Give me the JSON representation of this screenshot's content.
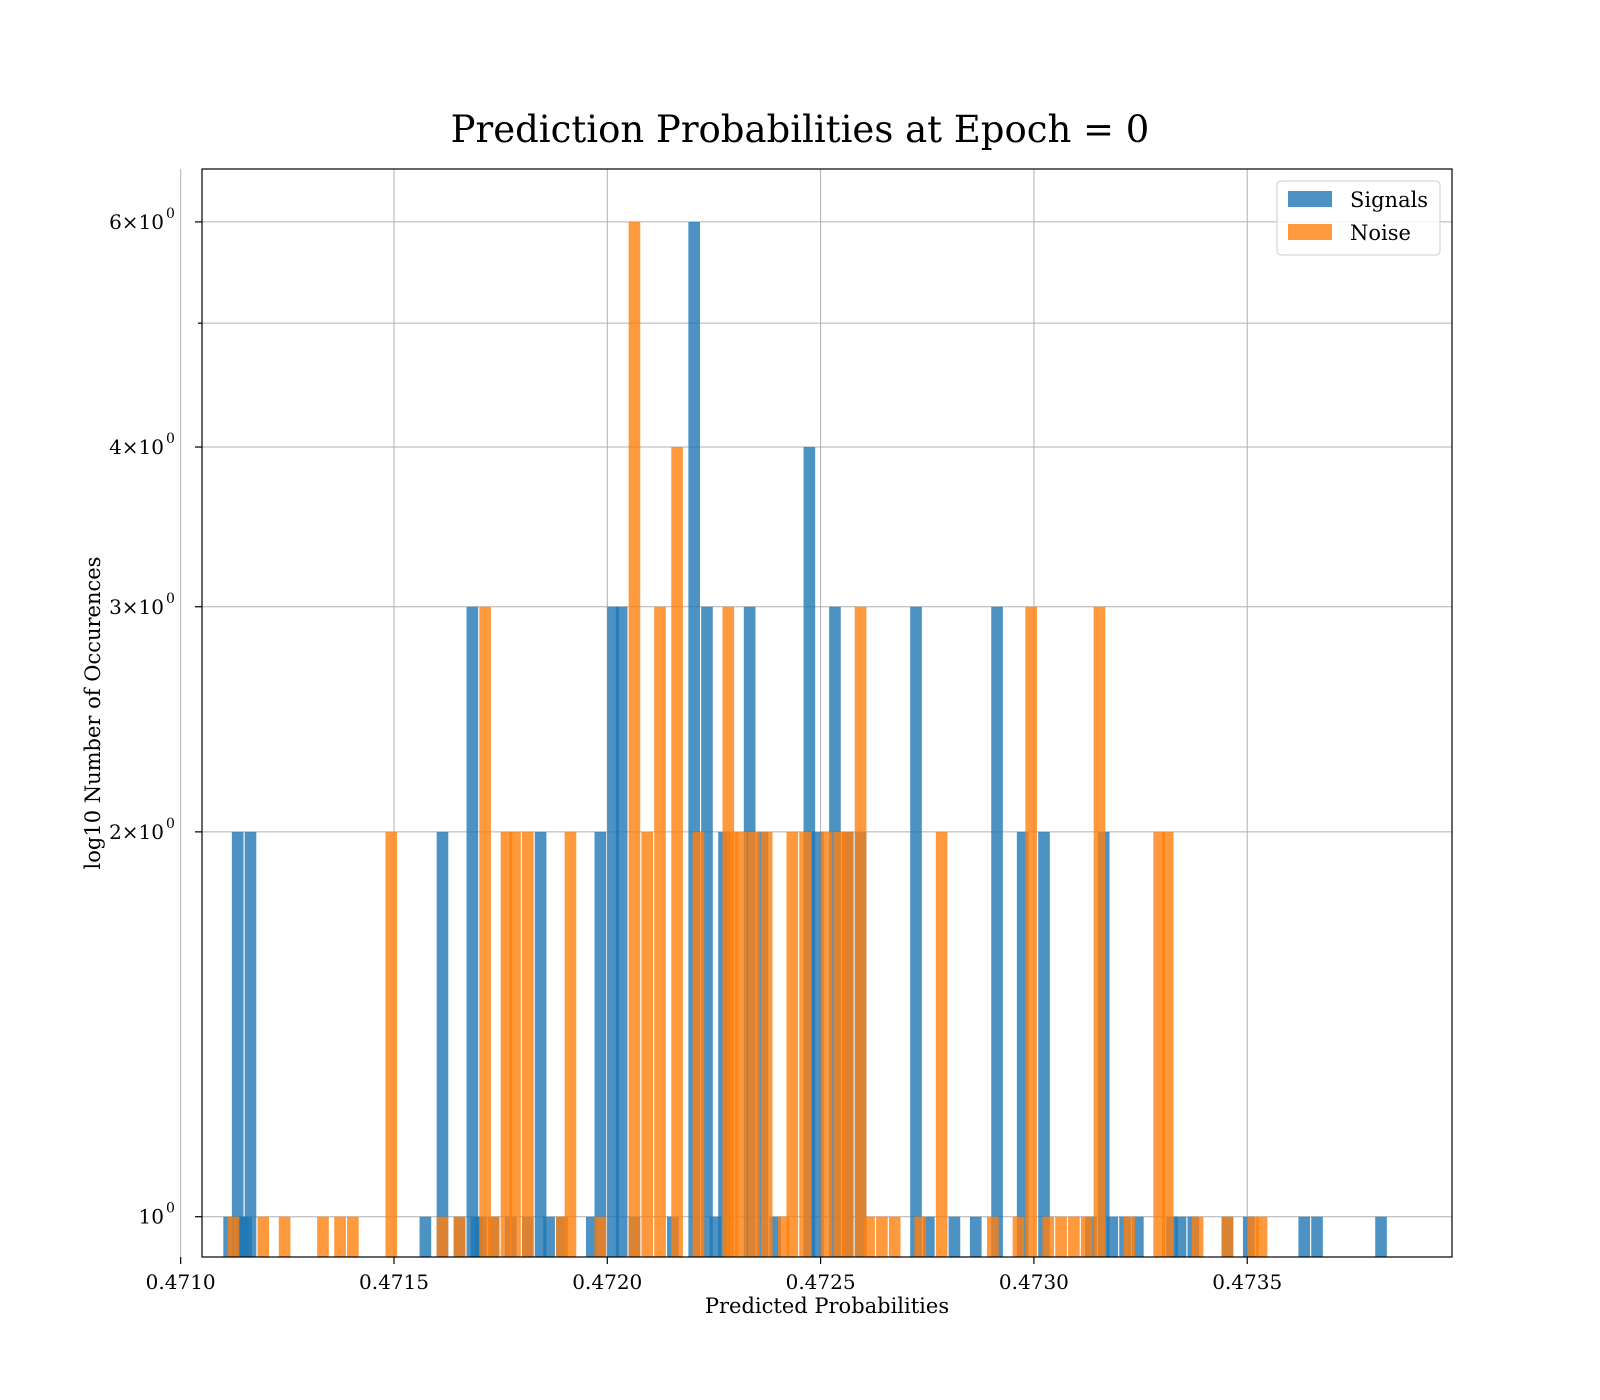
{
  "chart_data": {
    "type": "bar",
    "title": "Prediction Probabilities at Epoch = 0",
    "xlabel": "Predicted Probabilities",
    "ylabel": "log10 Number of Occurences",
    "xlim": [
      0.47105,
      0.47398
    ],
    "ylim": [
      0.93,
      6.6
    ],
    "y_scale": "log",
    "grid": true,
    "legend_position": "top-right",
    "x_ticks": [
      {
        "value": 0.471,
        "label": "0.4710"
      },
      {
        "value": 0.4715,
        "label": "0.4715"
      },
      {
        "value": 0.472,
        "label": "0.4720"
      },
      {
        "value": 0.4725,
        "label": "0.4725"
      },
      {
        "value": 0.473,
        "label": "0.4730"
      },
      {
        "value": 0.4735,
        "label": "0.4735"
      }
    ],
    "y_ticks": [
      {
        "value": 1,
        "base": "10",
        "exp": "0"
      },
      {
        "value": 2,
        "base": "2×10",
        "exp": "0"
      },
      {
        "value": 3,
        "base": "3×10",
        "exp": "0"
      },
      {
        "value": 4,
        "base": "4×10",
        "exp": "0"
      },
      {
        "value": 6,
        "base": "6×10",
        "exp": "0"
      }
    ],
    "y_minor_ticks": [
      5
    ],
    "series": [
      {
        "name": "Signals",
        "color": "#1f77b4",
        "bin_width": 2.73e-05,
        "bars": [
          [
            0.4711,
            1
          ],
          [
            0.47112,
            2
          ],
          [
            0.47113,
            1
          ],
          [
            0.47114,
            1
          ],
          [
            0.47115,
            2
          ],
          [
            0.47156,
            1
          ],
          [
            0.4716,
            2
          ],
          [
            0.47164,
            1
          ],
          [
            0.47167,
            3
          ],
          [
            0.47168,
            1
          ],
          [
            0.47169,
            1
          ],
          [
            0.47172,
            1
          ],
          [
            0.47176,
            1
          ],
          [
            0.4718,
            1
          ],
          [
            0.47183,
            2
          ],
          [
            0.47185,
            1
          ],
          [
            0.47188,
            1
          ],
          [
            0.47195,
            1
          ],
          [
            0.47197,
            2
          ],
          [
            0.472,
            3
          ],
          [
            0.47202,
            3
          ],
          [
            0.47205,
            1
          ],
          [
            0.47214,
            1
          ],
          [
            0.47219,
            6
          ],
          [
            0.47222,
            3
          ],
          [
            0.47224,
            1
          ],
          [
            0.47226,
            2
          ],
          [
            0.47232,
            3
          ],
          [
            0.47235,
            2
          ],
          [
            0.47238,
            1
          ],
          [
            0.47246,
            4
          ],
          [
            0.47248,
            2
          ],
          [
            0.47252,
            3
          ],
          [
            0.47255,
            2
          ],
          [
            0.47258,
            2
          ],
          [
            0.47271,
            3
          ],
          [
            0.47274,
            1
          ],
          [
            0.4728,
            1
          ],
          [
            0.47285,
            1
          ],
          [
            0.4729,
            3
          ],
          [
            0.47296,
            2
          ],
          [
            0.47301,
            2
          ],
          [
            0.47312,
            1
          ],
          [
            0.47315,
            2
          ],
          [
            0.47317,
            1
          ],
          [
            0.4732,
            1
          ],
          [
            0.47323,
            1
          ],
          [
            0.47331,
            1
          ],
          [
            0.47333,
            1
          ],
          [
            0.47336,
            1
          ],
          [
            0.47344,
            1
          ],
          [
            0.47349,
            1
          ],
          [
            0.47362,
            1
          ],
          [
            0.47365,
            1
          ],
          [
            0.4738,
            1
          ]
        ]
      },
      {
        "name": "Noise",
        "color": "#ff7f0e",
        "bin_width": 2.73e-05,
        "bars": [
          [
            0.47111,
            1
          ],
          [
            0.47118,
            1
          ],
          [
            0.47123,
            1
          ],
          [
            0.47132,
            1
          ],
          [
            0.47136,
            1
          ],
          [
            0.47139,
            1
          ],
          [
            0.47148,
            2
          ],
          [
            0.4716,
            1
          ],
          [
            0.47164,
            1
          ],
          [
            0.4717,
            3
          ],
          [
            0.47172,
            1
          ],
          [
            0.47175,
            2
          ],
          [
            0.47177,
            2
          ],
          [
            0.4718,
            2
          ],
          [
            0.47188,
            1
          ],
          [
            0.4719,
            2
          ],
          [
            0.47197,
            1
          ],
          [
            0.47205,
            6
          ],
          [
            0.47208,
            2
          ],
          [
            0.47211,
            3
          ],
          [
            0.47215,
            4
          ],
          [
            0.4722,
            2
          ],
          [
            0.47227,
            3
          ],
          [
            0.47228,
            2
          ],
          [
            0.4723,
            2
          ],
          [
            0.47233,
            2
          ],
          [
            0.47236,
            2
          ],
          [
            0.4724,
            1
          ],
          [
            0.47242,
            2
          ],
          [
            0.47245,
            2
          ],
          [
            0.4725,
            2
          ],
          [
            0.47253,
            2
          ],
          [
            0.47255,
            2
          ],
          [
            0.47258,
            3
          ],
          [
            0.4726,
            1
          ],
          [
            0.47263,
            1
          ],
          [
            0.47266,
            1
          ],
          [
            0.47272,
            1
          ],
          [
            0.47277,
            2
          ],
          [
            0.47289,
            1
          ],
          [
            0.47295,
            1
          ],
          [
            0.47298,
            3
          ],
          [
            0.47302,
            1
          ],
          [
            0.47305,
            1
          ],
          [
            0.47308,
            1
          ],
          [
            0.47311,
            1
          ],
          [
            0.47314,
            3
          ],
          [
            0.47321,
            1
          ],
          [
            0.47328,
            2
          ],
          [
            0.4733,
            2
          ],
          [
            0.47337,
            1
          ],
          [
            0.47344,
            1
          ],
          [
            0.4735,
            1
          ],
          [
            0.47352,
            1
          ]
        ]
      }
    ]
  }
}
